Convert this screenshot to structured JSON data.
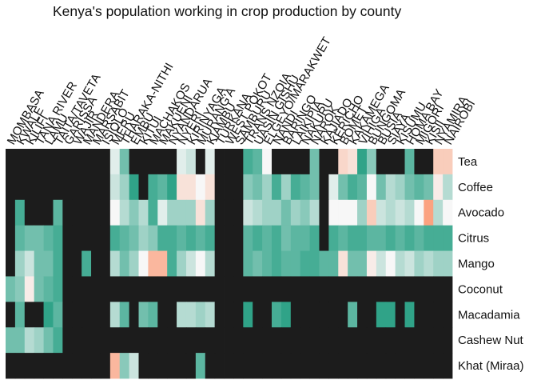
{
  "chart_data": {
    "type": "heatmap",
    "title": "Kenya's population working in crop production by county",
    "xlabel": "",
    "ylabel": "",
    "legend": "none",
    "grid": false,
    "colors": {
      "zero": "#1c1c1c",
      "low": "#1a9a7c",
      "mid": "#f7f7f7",
      "high": "#fc8d62"
    },
    "value_range": [
      0,
      1
    ],
    "counties": [
      "MOMBASA",
      "KWALE",
      "KILIFI",
      "TANA RIVER",
      "LAMU",
      "TAITA/TAVETA",
      "GARISSA",
      "WAJIR",
      "MANDERA",
      "MARSABIT",
      "ISIOLO",
      "MERU",
      "THARAKA-NITHI",
      "EMBU",
      "KITUI",
      "MACHAKOS",
      "MAKUENI",
      "NYANDARUA",
      "NYERI",
      "KIRINYAGA",
      "MURANG'A",
      "KIAMBU",
      "TURKANA",
      "WEST POKOT",
      "SAMBURU",
      "TRANS NZOIA",
      "UASIN GISHU",
      "ELGEYO/MARAKWET",
      "NANDI",
      "BARINGO",
      "LAIKIPIA",
      "NAKURU",
      "NAROK",
      "KAJIADO",
      "KERICHO",
      "BOMET",
      "KAKAMEGA",
      "VIHIGA",
      "BUNGOMA",
      "BUSIA",
      "SIAYA",
      "KISUMU",
      "HOMA BAY",
      "MIGORI",
      "KISII",
      "NYAMIRA",
      "NAIROBI"
    ],
    "crops": [
      "Tea",
      "Coffee",
      "Avocado",
      "Citrus",
      "Mango",
      "Coconut",
      "Macadamia",
      "Cashew Nut",
      "Khat (Miraa)"
    ],
    "values": [
      [
        0,
        0,
        0,
        0,
        0,
        0,
        0,
        0,
        0,
        0,
        0,
        0.45,
        0.2,
        0,
        0,
        0,
        0,
        0,
        0.45,
        0.4,
        0,
        0.45,
        0,
        0,
        0,
        0.1,
        0.15,
        0.5,
        0,
        0,
        0,
        0,
        0.2,
        0,
        0,
        0.65,
        0.6,
        0.05,
        0.25,
        0,
        0,
        0,
        0.15,
        0,
        0,
        0.7,
        0.7
      ],
      [
        0,
        0,
        0,
        0,
        0,
        0,
        0,
        0,
        0,
        0,
        0,
        0.4,
        0.3,
        0.05,
        0,
        0.1,
        0.15,
        0.05,
        0.6,
        0.6,
        0.5,
        0.6,
        0,
        0,
        0,
        0.25,
        0.2,
        0.3,
        0.1,
        0.3,
        0.1,
        0.15,
        0.2,
        0,
        0.45,
        0.2,
        0.1,
        0.15,
        0.5,
        0.2,
        0.35,
        0.3,
        0.2,
        0.15,
        0.2,
        0.55,
        0.35
      ],
      [
        0,
        0.1,
        0,
        0,
        0,
        0.15,
        0,
        0,
        0,
        0,
        0,
        0.5,
        0.35,
        0.25,
        0.35,
        0.1,
        0.45,
        0.3,
        0.3,
        0.3,
        0.6,
        0.3,
        0,
        0,
        0,
        0.4,
        0.35,
        0.3,
        0.3,
        0.2,
        0.3,
        0.25,
        0.35,
        0,
        0.5,
        0.5,
        0.5,
        0.3,
        0.7,
        0.4,
        0.35,
        0.4,
        0.35,
        0.5,
        0.9,
        0.35,
        0.5
      ],
      [
        0,
        0.15,
        0.2,
        0.2,
        0.15,
        0.1,
        0,
        0,
        0,
        0,
        0,
        0.1,
        0.15,
        0.2,
        0.3,
        0.25,
        0.1,
        0.1,
        0.15,
        0.1,
        0.15,
        0.1,
        0,
        0,
        0,
        0.15,
        0.1,
        0.15,
        0.1,
        0.2,
        0.15,
        0.15,
        0.1,
        0,
        0.1,
        0.15,
        0.1,
        0.1,
        0.15,
        0.15,
        0.1,
        0.15,
        0.1,
        0.15,
        0.1,
        0.1,
        0.1
      ],
      [
        0,
        0.3,
        0.4,
        0.2,
        0.2,
        0.1,
        0,
        0,
        0.1,
        0,
        0,
        0.35,
        0.2,
        0.3,
        0.5,
        0.8,
        0.8,
        0.1,
        0.3,
        0.4,
        0.5,
        0.35,
        0,
        0,
        0,
        0.15,
        0.2,
        0.15,
        0.1,
        0.15,
        0.15,
        0.1,
        0.1,
        0.15,
        0.15,
        0.6,
        0.2,
        0.2,
        0.55,
        0.4,
        0.5,
        0.35,
        0.4,
        0.3,
        0.35,
        0.3,
        0.3
      ],
      [
        0.2,
        0.25,
        0.55,
        0.2,
        0.15,
        0.1,
        0,
        0,
        0,
        0,
        0,
        0,
        0,
        0,
        0,
        0,
        0,
        0,
        0,
        0,
        0,
        0,
        0,
        0,
        0,
        0,
        0,
        0,
        0,
        0,
        0,
        0,
        0,
        0,
        0,
        0,
        0,
        0,
        0,
        0,
        0,
        0,
        0,
        0,
        0,
        0,
        0
      ],
      [
        0,
        0.15,
        0,
        0,
        0.05,
        0.15,
        0,
        0,
        0,
        0,
        0,
        0.35,
        0.15,
        0,
        0.2,
        0.15,
        0,
        0,
        0.35,
        0.35,
        0.3,
        0.35,
        0,
        0,
        0,
        0.05,
        0,
        0,
        0.1,
        0.05,
        0,
        0,
        0,
        0,
        0,
        0,
        0.15,
        0,
        0,
        0.05,
        0.05,
        0,
        0.05,
        0,
        0,
        0,
        0
      ],
      [
        0.2,
        0.2,
        0.35,
        0.3,
        0.2,
        0.1,
        0,
        0,
        0,
        0,
        0,
        0,
        0,
        0,
        0,
        0,
        0,
        0,
        0,
        0,
        0,
        0,
        0,
        0,
        0,
        0,
        0,
        0,
        0,
        0,
        0,
        0,
        0,
        0,
        0,
        0,
        0,
        0,
        0,
        0,
        0,
        0,
        0,
        0,
        0,
        0,
        0
      ],
      [
        0,
        0,
        0,
        0,
        0,
        0,
        0,
        0,
        0,
        0,
        0,
        0.8,
        0.25,
        0.4,
        0,
        0,
        0,
        0,
        0,
        0,
        0.15,
        0,
        0,
        0,
        0,
        0,
        0,
        0,
        0,
        0,
        0,
        0,
        0,
        0,
        0,
        0,
        0,
        0,
        0,
        0,
        0,
        0,
        0,
        0,
        0,
        0,
        0
      ]
    ]
  }
}
